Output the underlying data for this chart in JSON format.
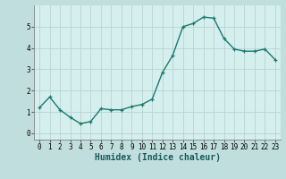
{
  "x": [
    0,
    1,
    2,
    3,
    4,
    5,
    6,
    7,
    8,
    9,
    10,
    11,
    12,
    13,
    14,
    15,
    16,
    17,
    18,
    19,
    20,
    21,
    22,
    23
  ],
  "y": [
    1.2,
    1.7,
    1.1,
    0.75,
    0.45,
    0.55,
    1.15,
    1.1,
    1.1,
    1.25,
    1.35,
    1.6,
    2.85,
    3.65,
    5.0,
    5.15,
    5.45,
    5.4,
    4.45,
    3.95,
    3.85,
    3.85,
    3.95,
    3.45
  ],
  "line_color": "#1a7a6e",
  "marker": "+",
  "markersize": 3.5,
  "linewidth": 1.0,
  "bg_color": "#d5eeee",
  "grid_color": "#b8d4d4",
  "xlabel": "Humidex (Indice chaleur)",
  "xlabel_fontsize": 7,
  "ylim": [
    -0.3,
    6.0
  ],
  "xlim": [
    -0.5,
    23.5
  ],
  "yticks": [
    0,
    1,
    2,
    3,
    4,
    5
  ],
  "xticks": [
    0,
    1,
    2,
    3,
    4,
    5,
    6,
    7,
    8,
    9,
    10,
    11,
    12,
    13,
    14,
    15,
    16,
    17,
    18,
    19,
    20,
    21,
    22,
    23
  ],
  "tick_fontsize": 5.5,
  "fig_bg_color": "#c0dede"
}
